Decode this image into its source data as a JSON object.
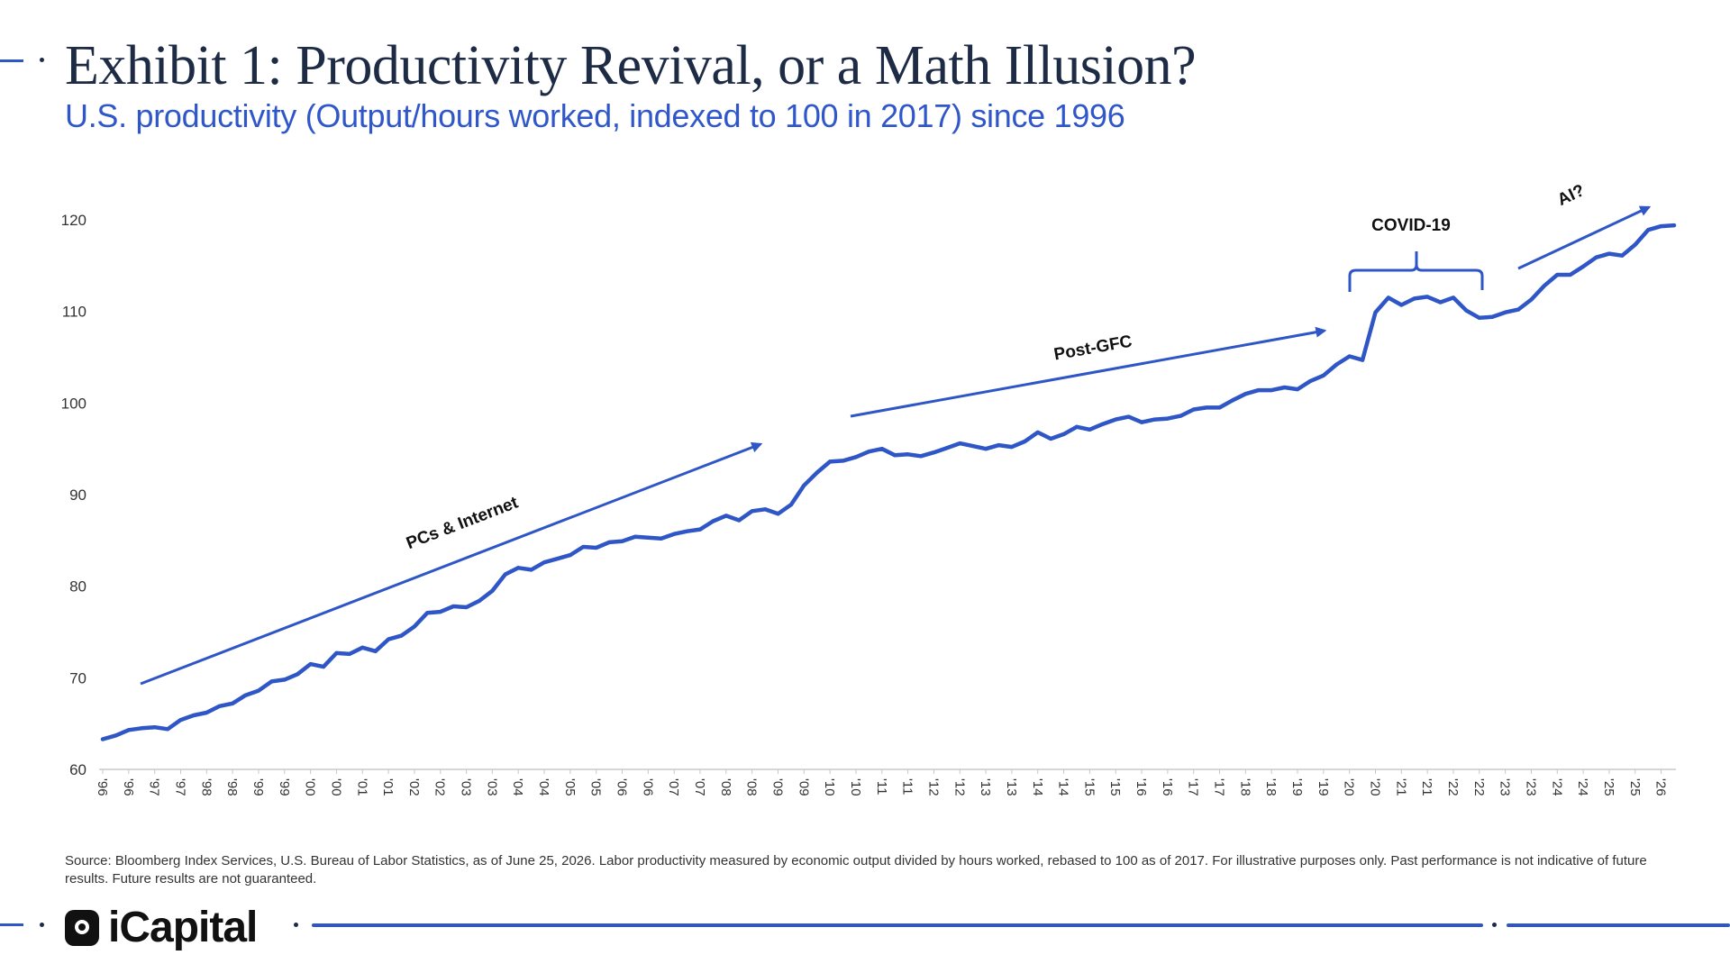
{
  "header": {
    "title": "Exhibit 1: Productivity Revival, or a Math Illusion?",
    "subtitle": "U.S. productivity (Output/hours worked, indexed to 100 in 2017) since 1996"
  },
  "colors": {
    "line": "#2f56c6",
    "title": "#1d2b45",
    "subtitle": "#3057c9",
    "axis": "#c8c8c8",
    "text": "#333333"
  },
  "chart_data": {
    "type": "line",
    "title": "",
    "xlabel": "",
    "ylabel": "",
    "ylim": [
      60,
      120
    ],
    "yticks": [
      60,
      70,
      80,
      90,
      100,
      110,
      120
    ],
    "grid": false,
    "x": [
      "'96",
      "'96",
      "'96",
      "'96",
      "'97",
      "'97",
      "'97",
      "'97",
      "'98",
      "'98",
      "'98",
      "'98",
      "'99",
      "'99",
      "'99",
      "'99",
      "'00",
      "'00",
      "'00",
      "'00",
      "'01",
      "'01",
      "'01",
      "'01",
      "'02",
      "'02",
      "'02",
      "'02",
      "'03",
      "'03",
      "'03",
      "'03",
      "'04",
      "'04",
      "'04",
      "'04",
      "'05",
      "'05",
      "'05",
      "'05",
      "'06",
      "'06",
      "'06",
      "'06",
      "'07",
      "'07",
      "'07",
      "'07",
      "'08",
      "'08",
      "'08",
      "'08",
      "'09",
      "'09",
      "'09",
      "'09",
      "'10",
      "'10",
      "'10",
      "'10",
      "'11",
      "'11",
      "'11",
      "'11",
      "'12",
      "'12",
      "'12",
      "'12",
      "'13",
      "'13",
      "'13",
      "'13",
      "'14",
      "'14",
      "'14",
      "'14",
      "'15",
      "'15",
      "'15",
      "'15",
      "'16",
      "'16",
      "'16",
      "'16",
      "'17",
      "'17",
      "'17",
      "'17",
      "'18",
      "'18",
      "'18",
      "'18",
      "'19",
      "'19",
      "'19",
      "'19",
      "'20",
      "'20",
      "'20",
      "'20",
      "'21",
      "'21",
      "'21",
      "'21",
      "'22",
      "'22",
      "'22",
      "'22",
      "'23",
      "'23",
      "'23",
      "'23",
      "'24",
      "'24",
      "'24",
      "'24",
      "'25",
      "'25",
      "'25",
      "'25",
      "'26",
      "'26"
    ],
    "x_tick_labels": [
      "'96",
      "'96",
      "'97",
      "'97",
      "'98",
      "'98",
      "'99",
      "'99",
      "'00",
      "'00",
      "'01",
      "'01",
      "'02",
      "'02",
      "'03",
      "'03",
      "'04",
      "'04",
      "'05",
      "'05",
      "'06",
      "'06",
      "'07",
      "'07",
      "'08",
      "'08",
      "'09",
      "'09",
      "'10",
      "'10",
      "'11",
      "'11",
      "'12",
      "'12",
      "'13",
      "'13",
      "'14",
      "'14",
      "'15",
      "'15",
      "'16",
      "'16",
      "'17",
      "'17",
      "'18",
      "'18",
      "'19",
      "'19",
      "'20",
      "'20",
      "'21",
      "'21",
      "'22",
      "'22",
      "'23",
      "'23",
      "'24",
      "'24",
      "'25",
      "'25",
      "'26"
    ],
    "series": [
      {
        "values": [
          63.3,
          63.7,
          64.3,
          64.5,
          64.6,
          64.4,
          65.4,
          65.9,
          66.2,
          66.9,
          67.2,
          68.1,
          68.6,
          69.6,
          69.8,
          70.4,
          71.5,
          71.2,
          72.7,
          72.6,
          73.3,
          72.9,
          74.2,
          74.6,
          75.6,
          77.1,
          77.2,
          77.8,
          77.7,
          78.4,
          79.5,
          81.3,
          82.0,
          81.8,
          82.6,
          83.0,
          83.4,
          84.3,
          84.2,
          84.8,
          84.9,
          85.4,
          85.3,
          85.2,
          85.7,
          86.0,
          86.2,
          87.1,
          87.7,
          87.2,
          88.2,
          88.4,
          87.9,
          88.9,
          91.0,
          92.4,
          93.6,
          93.7,
          94.1,
          94.7,
          95.0,
          94.3,
          94.4,
          94.2,
          94.6,
          95.1,
          95.6,
          95.3,
          95.0,
          95.4,
          95.2,
          95.8,
          96.8,
          96.1,
          96.6,
          97.4,
          97.1,
          97.7,
          98.2,
          98.5,
          97.9,
          98.2,
          98.3,
          98.6,
          99.3,
          99.5,
          99.5,
          100.3,
          101.0,
          101.4,
          101.4,
          101.7,
          101.5,
          102.4,
          103.0,
          104.2,
          105.1,
          104.7,
          109.9,
          111.5,
          110.7,
          111.4,
          111.6,
          111.0,
          111.5,
          110.1,
          109.3,
          109.4,
          109.9,
          110.2,
          111.3,
          112.8,
          114.0,
          114.0,
          114.9,
          115.9,
          116.3,
          116.1,
          117.3,
          118.9,
          119.3,
          119.4
        ]
      }
    ],
    "annotations": [
      {
        "label": "PCs & Internet"
      },
      {
        "label": "Post-GFC"
      },
      {
        "label": "COVID-19"
      },
      {
        "label": "AI?"
      }
    ]
  },
  "footer": {
    "source": "Source: Bloomberg Index Services, U.S. Bureau of Labor Statistics, as of June 25, 2026. Labor productivity measured by economic output divided by hours worked, rebased to 100 as of 2017. For illustrative purposes only. Past performance is not indicative of future results. Future results are not guaranteed.",
    "brand": "iCapital"
  }
}
